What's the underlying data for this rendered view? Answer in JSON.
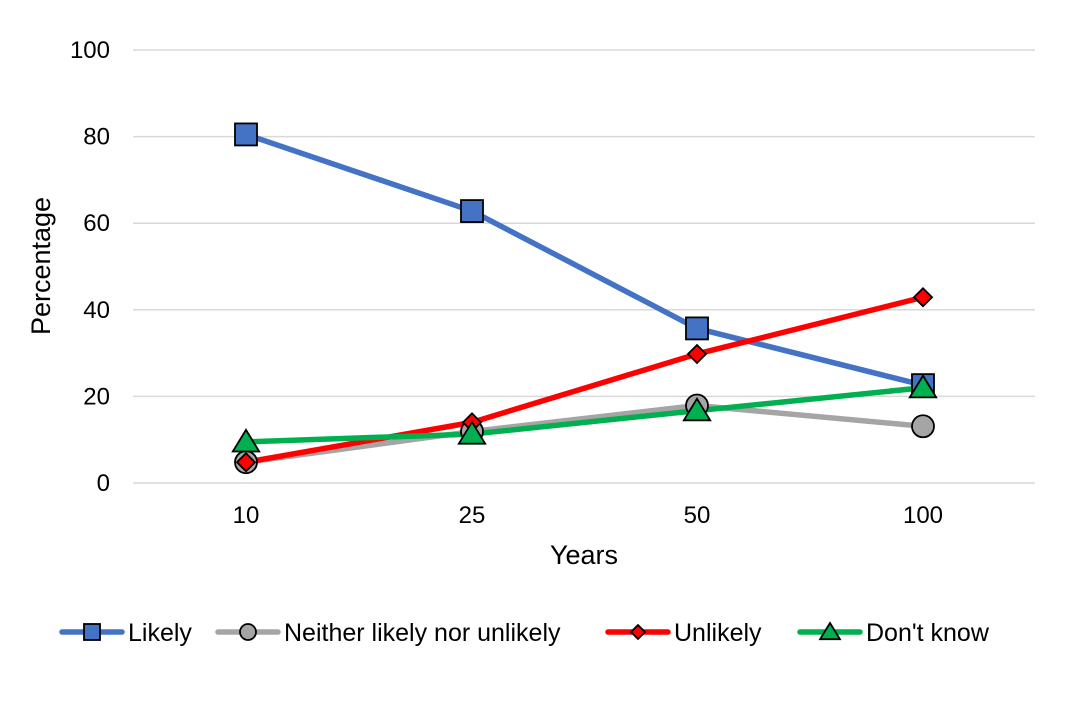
{
  "chart_data": {
    "type": "line",
    "title": "",
    "xlabel": "Years",
    "ylabel": "Percentage",
    "categories": [
      "10",
      "25",
      "50",
      "100"
    ],
    "ylim": [
      0,
      100
    ],
    "yticks": [
      "0",
      "20",
      "40",
      "60",
      "80",
      "100"
    ],
    "grid": "horizontal",
    "legend": "bottom",
    "series": [
      {
        "name": "Likely",
        "values": [
          80.5,
          62.8,
          35.7,
          22.6
        ],
        "color": "#4472C4",
        "marker": "square",
        "marker_fill": "#4472C4"
      },
      {
        "name": "Neither likely nor unlikely",
        "values": [
          4.8,
          11.9,
          17.9,
          13.1
        ],
        "color": "#A5A5A5",
        "marker": "circle",
        "marker_fill": "#A5A5A5"
      },
      {
        "name": "Unlikely",
        "values": [
          4.8,
          14.0,
          29.8,
          42.9
        ],
        "color": "#FF0000",
        "marker": "diamond",
        "marker_fill": "#FF0000"
      },
      {
        "name": "Don't know",
        "values": [
          9.5,
          11.3,
          16.7,
          22.0
        ],
        "color": "#00B050",
        "marker": "triangle",
        "marker_fill": "#00B050"
      }
    ]
  }
}
